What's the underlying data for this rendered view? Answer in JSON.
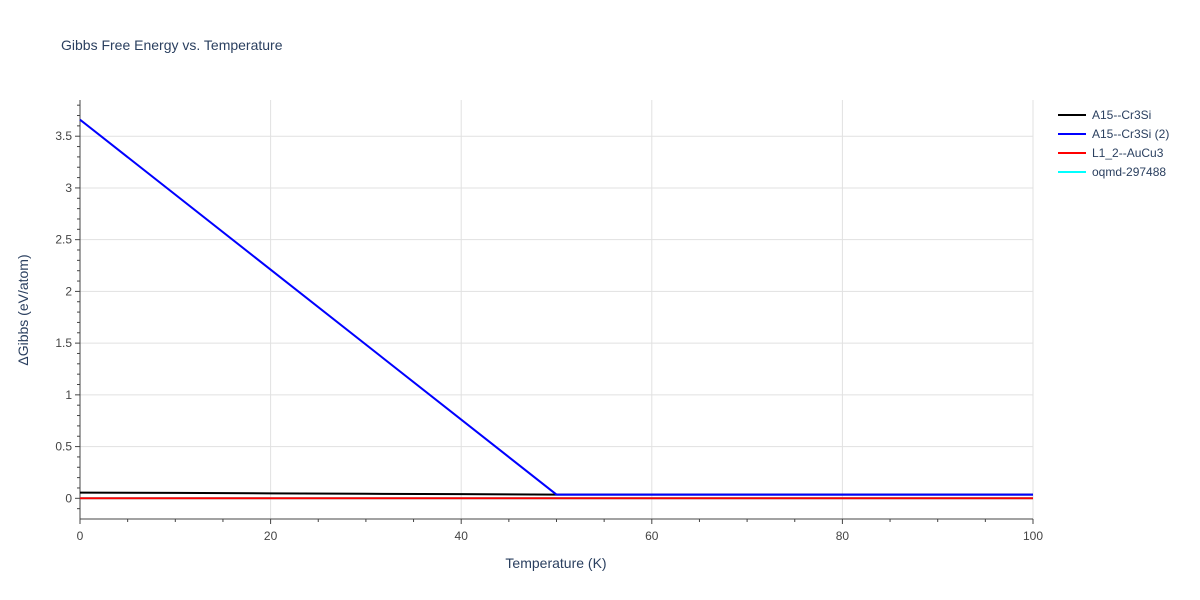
{
  "chart_data": {
    "type": "line",
    "title": "Gibbs Free Energy vs. Temperature",
    "xlabel": "Temperature (K)",
    "ylabel": "ΔGibbs (eV/atom)",
    "xlim": [
      0,
      100
    ],
    "ylim": [
      -0.2,
      3.85
    ],
    "x_ticks": [
      0,
      20,
      40,
      60,
      80,
      100
    ],
    "x_tick_labels": [
      "0",
      "20",
      "40",
      "60",
      "80",
      "100"
    ],
    "y_ticks": [
      0,
      0.5,
      1,
      1.5,
      2,
      2.5,
      3,
      3.5
    ],
    "y_tick_labels": [
      "0",
      "0.5",
      "1",
      "1.5",
      "2",
      "2.5",
      "3",
      "3.5"
    ],
    "grid": true,
    "legend_position": "top-right",
    "series": [
      {
        "name": "A15--Cr3Si",
        "color": "#000000",
        "x": [
          0,
          10,
          20,
          30,
          40,
          50,
          60,
          70,
          80,
          90,
          100
        ],
        "y": [
          0.055,
          0.052,
          0.048,
          0.044,
          0.04,
          0.036,
          0.036,
          0.036,
          0.036,
          0.036,
          0.036
        ]
      },
      {
        "name": "A15--Cr3Si (2)",
        "color": "#0000ff",
        "x": [
          0,
          50,
          60,
          70,
          80,
          90,
          100
        ],
        "y": [
          3.66,
          0.036,
          0.036,
          0.036,
          0.036,
          0.036,
          0.036
        ]
      },
      {
        "name": "L1_2--AuCu3",
        "color": "#ff0000",
        "x": [
          0,
          50,
          100
        ],
        "y": [
          0.0,
          0.0,
          0.0
        ]
      },
      {
        "name": "oqmd-297488",
        "color": "#00ffff",
        "x": [
          0,
          50,
          100
        ],
        "y": [
          0.0,
          0.0,
          0.0
        ]
      }
    ]
  }
}
